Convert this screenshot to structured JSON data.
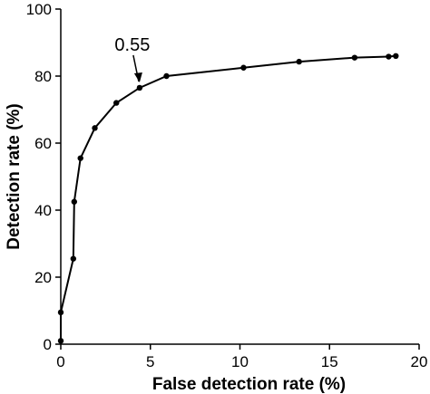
{
  "chart_data": {
    "type": "line",
    "title": "",
    "xlabel": "False detection rate (%)",
    "ylabel": "Detection rate (%)",
    "xlim": [
      0,
      20
    ],
    "ylim": [
      0,
      100
    ],
    "x_ticks": [
      0,
      5,
      10,
      15,
      20
    ],
    "y_ticks": [
      0,
      20,
      40,
      60,
      80,
      100
    ],
    "grid": false,
    "legend": "none",
    "series": [
      {
        "x": [
          0.0,
          0.0,
          0.7,
          0.75,
          1.1,
          1.9,
          3.1,
          4.4,
          5.9,
          10.2,
          13.3,
          16.4,
          18.3,
          18.7
        ],
        "y": [
          1,
          9.5,
          25.5,
          42.5,
          55.5,
          64.5,
          72,
          76.5,
          80,
          82.5,
          84.3,
          85.5,
          85.8,
          86
        ],
        "color": "#000000"
      }
    ],
    "annotations": [
      {
        "text": "0.55",
        "x": 4.4,
        "y": 76.5
      }
    ]
  }
}
